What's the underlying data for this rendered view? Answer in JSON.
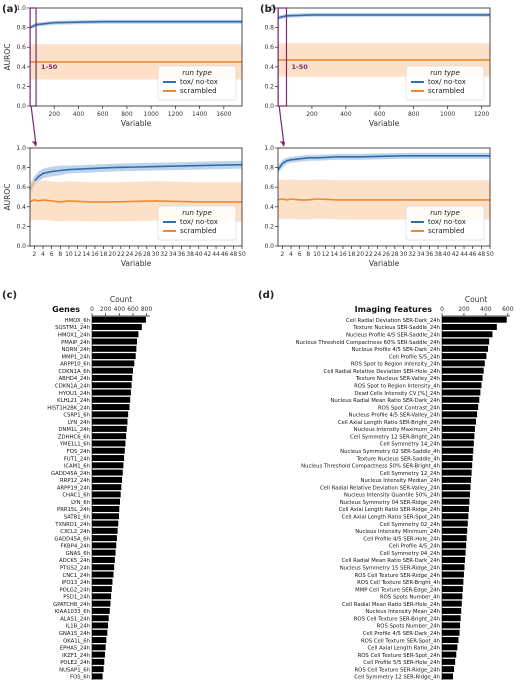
{
  "panel_labels": [
    "(a)",
    "(b)",
    "(c)",
    "(d)"
  ],
  "colors": {
    "tox": "#2f6fb0",
    "tox_band": "#a9c4e2",
    "scr": "#f08a2e",
    "scr_band": "#fbd6b5",
    "bar": "#000000",
    "zoom": "#7a2a6e",
    "frame": "#222222"
  },
  "zoom_text": "1-50",
  "chart_data": [
    {
      "panel": "(a)",
      "type": "line",
      "xlabel": "Variable",
      "ylabel": "AUROC",
      "xlim": [
        0,
        1750
      ],
      "ylim": [
        0,
        1.0
      ],
      "xticks": [
        200,
        400,
        600,
        800,
        1000,
        1200,
        1400,
        1600
      ],
      "yticks": [
        0.0,
        0.2,
        0.4,
        0.6,
        0.8,
        1.0
      ],
      "legend": {
        "title": "run type",
        "entries": [
          "tox/ no-tox",
          "scrambled"
        ],
        "position": "lower-right"
      },
      "series": [
        {
          "name": "tox/ no-tox",
          "x": [
            1,
            50,
            200,
            600,
            1000,
            1400,
            1750
          ],
          "y": [
            0.8,
            0.83,
            0.85,
            0.86,
            0.86,
            0.86,
            0.86
          ],
          "band": [
            0.02,
            0.02,
            0.02,
            0.02,
            0.02,
            0.02,
            0.02
          ]
        },
        {
          "name": "scrambled",
          "x": [
            1,
            50,
            200,
            600,
            1000,
            1400,
            1750
          ],
          "y": [
            0.45,
            0.45,
            0.45,
            0.45,
            0.45,
            0.45,
            0.45
          ],
          "band": [
            0.18,
            0.18,
            0.18,
            0.18,
            0.18,
            0.18,
            0.18
          ]
        }
      ]
    },
    {
      "panel": "(a) zoom",
      "type": "line",
      "xlabel": "Variable",
      "ylabel": "AUROC",
      "xlim": [
        1,
        50
      ],
      "ylim": [
        0,
        1.0
      ],
      "xticks": [
        2,
        4,
        6,
        8,
        10,
        12,
        14,
        16,
        18,
        20,
        22,
        24,
        26,
        28,
        30,
        32,
        34,
        36,
        38,
        40,
        42,
        44,
        46,
        48,
        50
      ],
      "yticks": [
        0.0,
        0.2,
        0.4,
        0.6,
        0.8,
        1.0
      ],
      "legend": {
        "title": "run type",
        "entries": [
          "tox/ no-tox",
          "scrambled"
        ],
        "position": "lower-right"
      },
      "series": [
        {
          "name": "tox/ no-tox",
          "x": [
            1,
            2,
            3,
            4,
            6,
            8,
            10,
            15,
            20,
            30,
            40,
            50
          ],
          "y": [
            0.57,
            0.66,
            0.71,
            0.74,
            0.76,
            0.77,
            0.78,
            0.79,
            0.8,
            0.81,
            0.82,
            0.83
          ],
          "band": [
            0.05,
            0.05,
            0.05,
            0.05,
            0.05,
            0.05,
            0.04,
            0.04,
            0.04,
            0.04,
            0.04,
            0.04
          ]
        },
        {
          "name": "scrambled",
          "x": [
            1,
            2,
            3,
            4,
            6,
            8,
            10,
            15,
            20,
            30,
            40,
            50
          ],
          "y": [
            0.45,
            0.47,
            0.46,
            0.47,
            0.46,
            0.45,
            0.46,
            0.45,
            0.45,
            0.46,
            0.45,
            0.45
          ],
          "band": [
            0.2,
            0.2,
            0.2,
            0.2,
            0.2,
            0.2,
            0.2,
            0.2,
            0.2,
            0.2,
            0.2,
            0.2
          ]
        }
      ]
    },
    {
      "panel": "(b)",
      "type": "line",
      "xlabel": "Variable",
      "ylabel": "",
      "xlim": [
        0,
        1250
      ],
      "ylim": [
        0,
        1.0
      ],
      "xticks": [
        200,
        400,
        600,
        800,
        1000,
        1200
      ],
      "yticks": [
        0.0,
        0.2,
        0.4,
        0.6,
        0.8,
        1.0
      ],
      "legend": {
        "title": "run type",
        "entries": [
          "tox/ no-tox",
          "scrambled"
        ],
        "position": "lower-right"
      },
      "series": [
        {
          "name": "tox/ no-tox",
          "x": [
            1,
            50,
            200,
            600,
            1000,
            1250
          ],
          "y": [
            0.9,
            0.92,
            0.93,
            0.93,
            0.93,
            0.93
          ],
          "band": [
            0.02,
            0.02,
            0.02,
            0.02,
            0.02,
            0.02
          ]
        },
        {
          "name": "scrambled",
          "x": [
            1,
            50,
            200,
            600,
            1000,
            1250
          ],
          "y": [
            0.47,
            0.47,
            0.47,
            0.47,
            0.47,
            0.47
          ],
          "band": [
            0.17,
            0.17,
            0.17,
            0.17,
            0.17,
            0.17
          ]
        }
      ]
    },
    {
      "panel": "(b) zoom",
      "type": "line",
      "xlabel": "Variable",
      "ylabel": "",
      "xlim": [
        1,
        50
      ],
      "ylim": [
        0,
        1.0
      ],
      "xticks": [
        2,
        4,
        6,
        8,
        10,
        12,
        14,
        16,
        18,
        20,
        22,
        24,
        26,
        28,
        30,
        32,
        34,
        36,
        38,
        40,
        42,
        44,
        46,
        48,
        50
      ],
      "yticks": [
        0.0,
        0.2,
        0.4,
        0.6,
        0.8,
        1.0
      ],
      "legend": {
        "title": "run type",
        "entries": [
          "tox/ no-tox",
          "scrambled"
        ],
        "position": "lower-right"
      },
      "series": [
        {
          "name": "tox/ no-tox",
          "x": [
            1,
            2,
            3,
            4,
            6,
            8,
            10,
            15,
            20,
            30,
            40,
            50
          ],
          "y": [
            0.78,
            0.84,
            0.87,
            0.88,
            0.89,
            0.9,
            0.9,
            0.91,
            0.91,
            0.92,
            0.92,
            0.92
          ],
          "band": [
            0.04,
            0.04,
            0.03,
            0.03,
            0.03,
            0.03,
            0.03,
            0.03,
            0.03,
            0.03,
            0.03,
            0.03
          ]
        },
        {
          "name": "scrambled",
          "x": [
            1,
            2,
            3,
            4,
            6,
            8,
            10,
            15,
            20,
            30,
            40,
            50
          ],
          "y": [
            0.47,
            0.48,
            0.47,
            0.48,
            0.47,
            0.47,
            0.48,
            0.47,
            0.47,
            0.47,
            0.47,
            0.47
          ],
          "band": [
            0.2,
            0.2,
            0.2,
            0.2,
            0.2,
            0.2,
            0.2,
            0.2,
            0.2,
            0.2,
            0.2,
            0.2
          ]
        }
      ]
    },
    {
      "panel": "(c)",
      "type": "bar",
      "title": "Genes",
      "xlabel": "Count",
      "xlim": [
        0,
        850
      ],
      "xticks": [
        0,
        200,
        400,
        600,
        800
      ],
      "categories": [
        "HMOX_6h",
        "SQSTM1_24h",
        "HMOX1_24h",
        "PMAIP_24h",
        "NQRN_24h",
        "MMP1_24h",
        "ARPP10_6h",
        "CDKN1A_6h",
        "ABHD4_24h",
        "CDKN1A_24h",
        "HYOU1_24h",
        "KLHL21_24h",
        "HIST1H2BK_24h",
        "CSRP1_6h",
        "LYN_24h",
        "DNM1L_24h",
        "ZDHHC6_6h",
        "YME1L1_6h",
        "FOS_24h",
        "FUT1_24h",
        "ICAM1_6h",
        "GADD45A_24h",
        "RRP12_24h",
        "ARPP19_24h",
        "CHAC1_6h",
        "LYN_6h",
        "PRR15L_24h",
        "SATB1_6h",
        "TXNRD1_24h",
        "CXCL2_24h",
        "GADD45A_6h",
        "FKBP4_24h",
        "GNAS_6h",
        "ADCK5_24h",
        "PTGS2_24h",
        "CNC1_24h",
        "IPO13_24h",
        "POLG2_24h",
        "PSD1_24h",
        "GPATCH8_24h",
        "KIAA1033_6h",
        "ALAS1_24h",
        "IL1B_24h",
        "GNA15_24h",
        "OKA1L_6h",
        "EPHA5_24h",
        "IKZF1_24h",
        "POLE2_24h",
        "NUSAP1_6h",
        "FOS_6h"
      ],
      "values": [
        790,
        730,
        680,
        660,
        650,
        640,
        620,
        600,
        590,
        580,
        570,
        560,
        550,
        530,
        520,
        510,
        500,
        490,
        480,
        470,
        460,
        450,
        440,
        430,
        420,
        410,
        400,
        395,
        385,
        375,
        365,
        355,
        345,
        335,
        325,
        315,
        300,
        290,
        280,
        270,
        260,
        245,
        235,
        225,
        210,
        200,
        190,
        180,
        170,
        155
      ]
    },
    {
      "panel": "(d)",
      "type": "bar",
      "title": "Imaging features",
      "xlabel": "Count",
      "xlim": [
        0,
        620
      ],
      "xticks": [
        0,
        200,
        400,
        600
      ],
      "categories": [
        "Cell Radial Deviation SER-Dark_24h",
        "Texture Nucleus SER-Saddle_24h",
        "Nucleus Profile 4/5 SER-Saddle_24h",
        "Nucleus Threshold Compactness 60% SER-Saddle_24h",
        "Nucleus Profile 4/5 SER-Dark_24h",
        "Cell Profile 5/5_24h",
        "ROS Spot to Region Intensity_24h",
        "Cell Radial Relative Deviation SER-Hole_24h",
        "Texture Nucleus SER-Valley_24h",
        "ROS Spot to Region Intensity_4h",
        "Dead Cells Intensity CV [%]_24h",
        "Nucleus Radial Mean Ratio SER-Dark_24h",
        "ROS Spot Contrast_24h",
        "Nucleus Profile 4/5 SER-Valley_24h",
        "Cell Axial Length Ratio SER-Bright_24h",
        "Nucleus Intensity Maximum_24h",
        "Cell Symmetry 12 SER-Bright_24h",
        "Cell Symmetry 14_24h",
        "Nucleus Symmetry 02 SER-Saddle_4h",
        "Texture Nucleus SER-Saddle_4h",
        "Nucleus Threshold Compactness 50% SER-Bright_4h",
        "Cell Symmetry 12_24h",
        "Nucleus Intensity Median_24h",
        "Cell Radial Relative Deviation SER-Valley_24h",
        "Nucleus Intensity Quantile 50%_24h",
        "Nucleus Symmetry 04 SER-Ridge_24h",
        "Cell Axial Length Ratio SER-Ridge_24h",
        "Cell Axial Length Ratio SER-Spot_24h",
        "Cell Symmetry 02_24h",
        "Nucleus Intensity Minimum_24h",
        "Cell Profile 4/5 SER-Hole_24h",
        "Cell Profile 4/5_24h",
        "Cell Symmetry 04_24h",
        "Cell Radial Mean Ratio SER-Dark_24h",
        "Nucleus Symmetry 15 SER-Ridge_24h",
        "ROS Cell Texture SER-Ridge_24h",
        "ROS Cell Texture SER-Bright_4h",
        "MMP Cell Texture SER-Edge_24h",
        "ROS Spots Number_4h",
        "Cell Radial Mean Ratio SER-Hole_24h",
        "Nucleus Intensity Mean_24h",
        "ROS Cell Texture SER-Bright_24h",
        "ROS Spots Number_24h",
        "Cell Profile 4/5 SER-Dark_24h",
        "ROS Cell Texture SER-Spot_4h",
        "Cell Axial Length Ratio_24h",
        "ROS Cell Texture SER-Spot_24h",
        "Cell Profile 5/5 SER-Hole_24h",
        "ROS Cell Texture SER-Ridge_24h",
        "Cell Symmetry 12 SER-Ridge_4h"
      ],
      "values": [
        590,
        500,
        460,
        430,
        420,
        405,
        390,
        380,
        370,
        360,
        350,
        340,
        330,
        320,
        310,
        300,
        295,
        290,
        285,
        280,
        275,
        270,
        265,
        260,
        255,
        250,
        245,
        240,
        235,
        230,
        225,
        220,
        215,
        210,
        205,
        200,
        195,
        190,
        185,
        180,
        175,
        170,
        165,
        160,
        150,
        140,
        130,
        120,
        110,
        100
      ]
    }
  ]
}
